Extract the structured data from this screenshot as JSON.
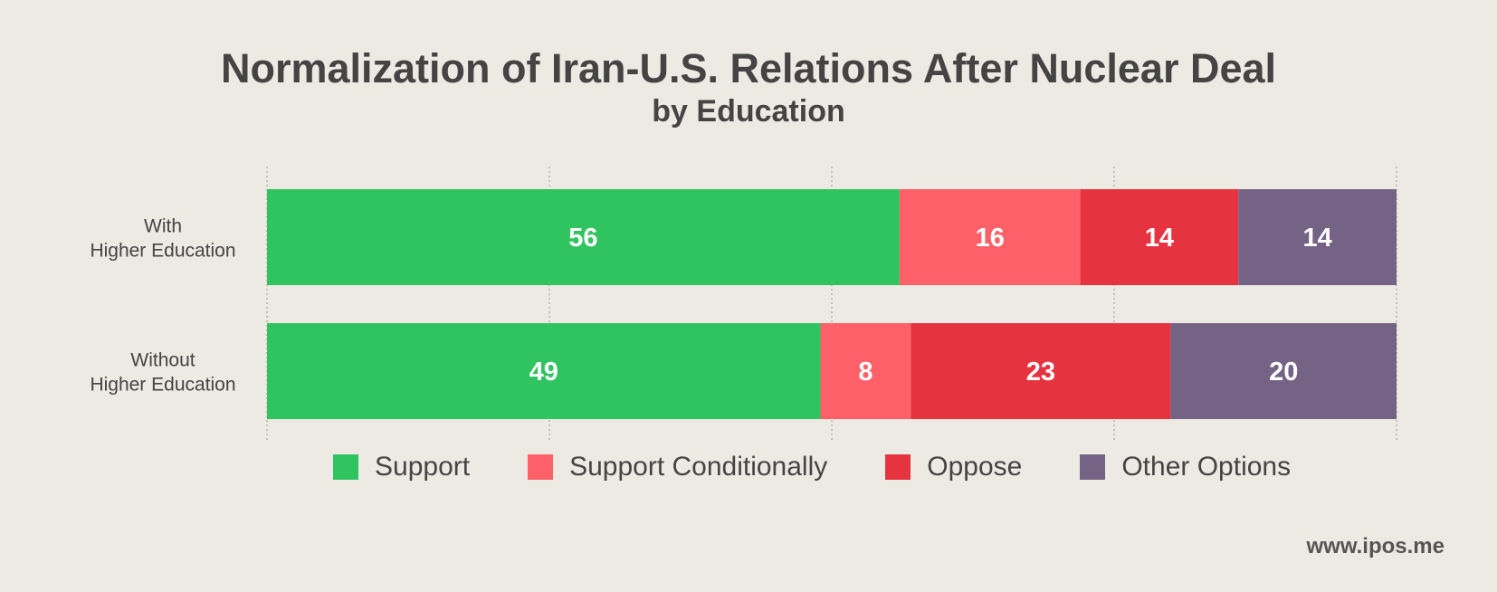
{
  "chart_data": {
    "type": "bar",
    "orientation": "horizontal",
    "stacked": true,
    "title": "Normalization of Iran-U.S. Relations After Nuclear Deal",
    "subtitle": "by Education",
    "categories": [
      [
        "With",
        "Higher Education"
      ],
      [
        "Without",
        "Higher Education"
      ]
    ],
    "series": [
      {
        "name": "Support",
        "color": "#30c460",
        "values": [
          56,
          49
        ]
      },
      {
        "name": "Support Conditionally",
        "color": "#fd6068",
        "values": [
          16,
          8
        ]
      },
      {
        "name": "Oppose",
        "color": "#e63340",
        "values": [
          14,
          23
        ]
      },
      {
        "name": "Other Options",
        "color": "#756386",
        "values": [
          14,
          20
        ]
      }
    ],
    "xlim": [
      0,
      100
    ],
    "grid": true,
    "legend_position": "bottom"
  },
  "footer": {
    "source": "www.ipos.me"
  }
}
